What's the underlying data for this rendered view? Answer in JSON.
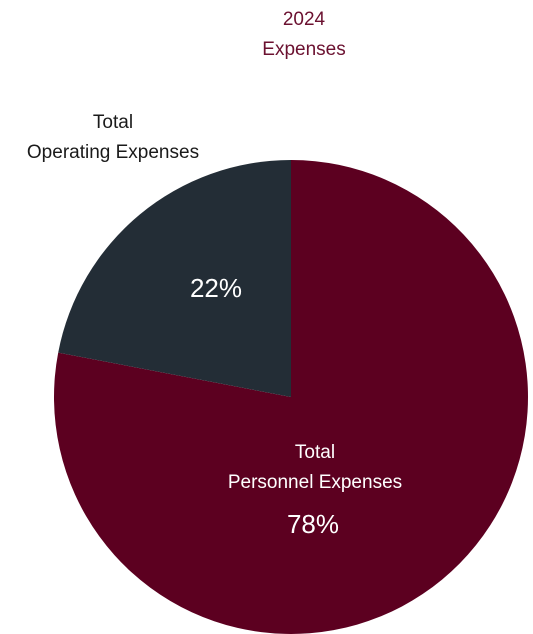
{
  "chart_data": {
    "type": "pie",
    "title": [
      "2024",
      "Expenses"
    ],
    "slices": [
      {
        "name": [
          "Total",
          "Personnel Expenses"
        ],
        "value": 78,
        "display_value": "78%",
        "color": "#5c0020",
        "label_color": "#ffffff"
      },
      {
        "name": [
          "Total",
          "Operating Expenses"
        ],
        "value": 22,
        "display_value": "22%",
        "color": "#232d36",
        "label_color": "#1a1a1a"
      }
    ],
    "title_color": "#6b1130",
    "start_angle_deg": 0,
    "direction": "clockwise"
  }
}
